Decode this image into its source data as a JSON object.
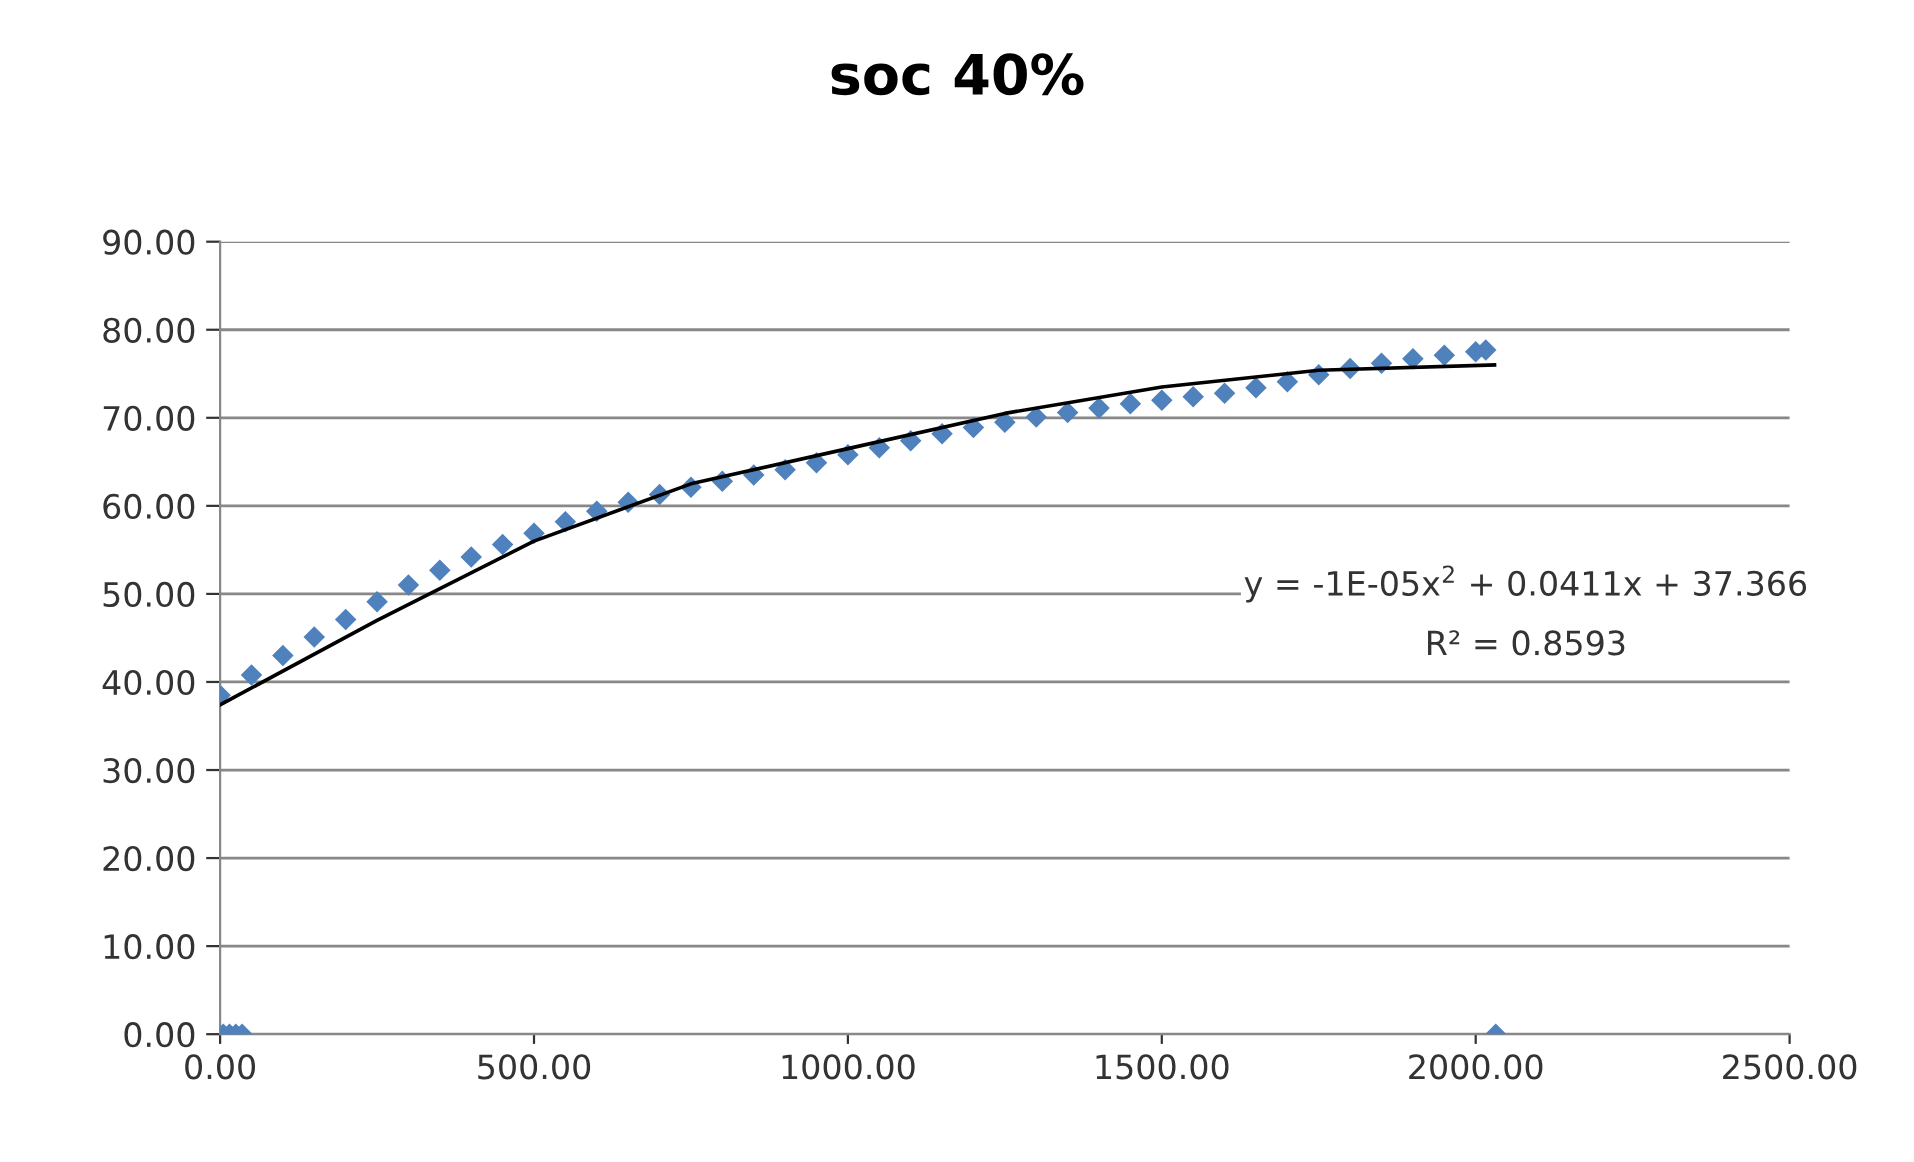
{
  "chart_data": {
    "type": "scatter",
    "title": "soc 40%",
    "series": [
      {
        "color": "#4f81bd",
        "marker": "diamond",
        "x": [
          5,
          15,
          25,
          35,
          2032,
          0,
          50,
          100,
          150,
          200,
          250,
          300,
          350,
          400,
          450,
          500,
          550,
          600,
          650,
          700,
          750,
          800,
          850,
          900,
          950,
          1000,
          1050,
          1100,
          1150,
          1200,
          1250,
          1300,
          1350,
          1400,
          1450,
          1500,
          1550,
          1600,
          1650,
          1700,
          1750,
          1800,
          1850,
          1900,
          1950,
          2000,
          2016
        ],
        "values": [
          0,
          0,
          0,
          0,
          0,
          38.5,
          40.8,
          43.0,
          45.1,
          47.1,
          49.1,
          51.0,
          52.7,
          54.2,
          55.6,
          56.9,
          58.2,
          59.4,
          60.4,
          61.3,
          62.1,
          62.8,
          63.5,
          64.1,
          64.9,
          65.8,
          66.6,
          67.4,
          68.2,
          68.9,
          69.5,
          70.1,
          70.6,
          71.1,
          71.6,
          72.0,
          72.4,
          72.8,
          73.4,
          74.1,
          74.9,
          75.6,
          76.2,
          76.7,
          77.1,
          77.5,
          77.7
        ]
      },
      {
        "type": "line",
        "color": "#000000",
        "x": [
          0,
          250,
          500,
          750,
          1000,
          1250,
          1500,
          1750,
          2030
        ],
        "values": [
          37.4,
          47.0,
          56.0,
          62.5,
          66.5,
          70.5,
          73.5,
          75.4,
          76.0
        ]
      }
    ],
    "xlim": [
      0,
      2500
    ],
    "xticks": [
      {
        "value": 0,
        "label": "0.00"
      },
      {
        "value": 500,
        "label": "500.00"
      },
      {
        "value": 1000,
        "label": "1000.00"
      },
      {
        "value": 1500,
        "label": "1500.00"
      },
      {
        "value": 2000,
        "label": "2000.00"
      },
      {
        "value": 2500,
        "label": "2500.00"
      }
    ],
    "ylim": [
      0,
      90
    ],
    "yticks": [
      {
        "value": 0,
        "label": "0.00"
      },
      {
        "value": 10,
        "label": "10.00"
      },
      {
        "value": 20,
        "label": "20.00"
      },
      {
        "value": 30,
        "label": "30.00"
      },
      {
        "value": 40,
        "label": "40.00"
      },
      {
        "value": 50,
        "label": "50.00"
      },
      {
        "value": 60,
        "label": "60.00"
      },
      {
        "value": 70,
        "label": "70.00"
      },
      {
        "value": 80,
        "label": "80.00"
      },
      {
        "value": 90,
        "label": "90.00"
      }
    ],
    "grid": "y",
    "annotations": [
      "y = -1E-05x$^{2}$ + 0.0411x + 37.366",
      "R² = 0.8593"
    ]
  }
}
